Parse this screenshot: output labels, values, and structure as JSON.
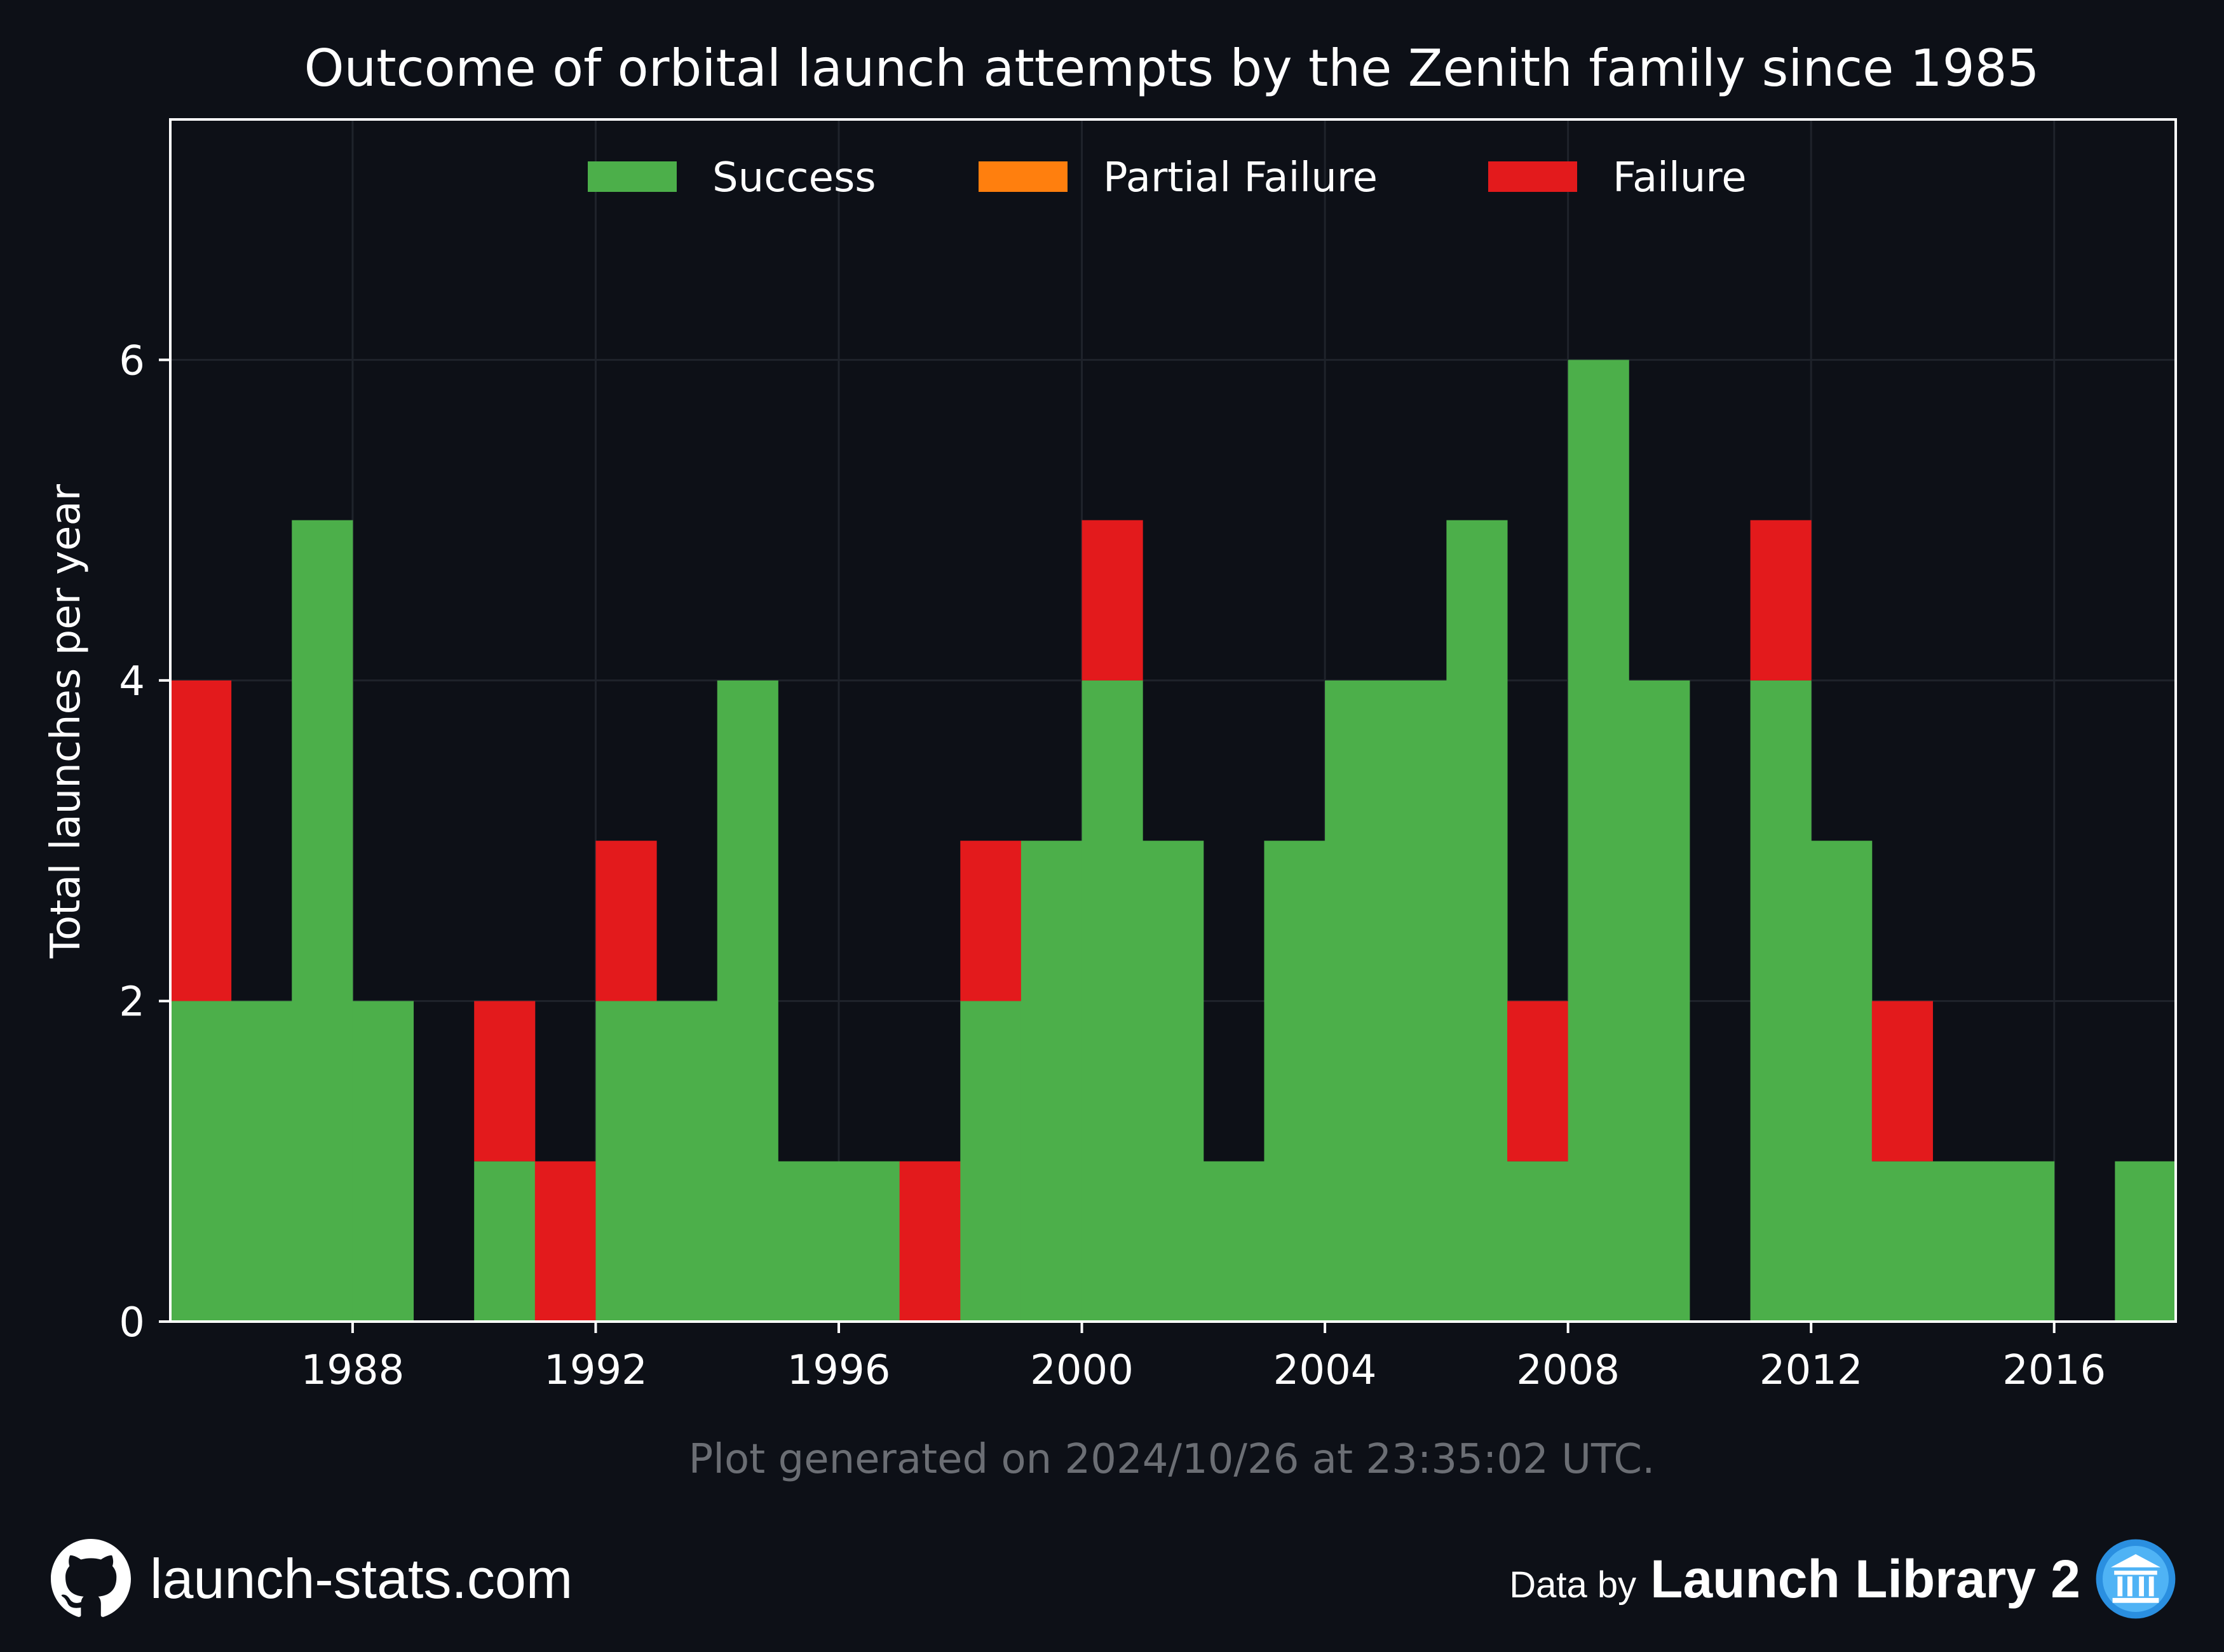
{
  "chart_data": {
    "type": "bar",
    "stacked": true,
    "title": "Outcome of orbital launch attempts by the Zenith family since 1985",
    "xlabel": "",
    "ylabel": "Total launches per year",
    "x": [
      1985,
      1986,
      1987,
      1988,
      1989,
      1990,
      1991,
      1992,
      1993,
      1994,
      1995,
      1996,
      1997,
      1998,
      1999,
      2000,
      2001,
      2002,
      2003,
      2004,
      2005,
      2006,
      2007,
      2008,
      2009,
      2010,
      2011,
      2012,
      2013,
      2014,
      2015,
      2016,
      2017
    ],
    "series": [
      {
        "name": "Success",
        "color": "#4caf4a",
        "values": [
          2,
          2,
          5,
          2,
          0,
          1,
          0,
          2,
          2,
          4,
          1,
          1,
          0,
          2,
          3,
          4,
          3,
          1,
          3,
          4,
          4,
          5,
          1,
          6,
          4,
          0,
          4,
          3,
          1,
          1,
          1,
          0,
          1
        ]
      },
      {
        "name": "Partial Failure",
        "color": "#ff7f0e",
        "values": [
          0,
          0,
          0,
          0,
          0,
          0,
          0,
          0,
          0,
          0,
          0,
          0,
          0,
          0,
          0,
          0,
          0,
          0,
          0,
          0,
          0,
          0,
          0,
          0,
          0,
          0,
          0,
          0,
          0,
          0,
          0,
          0,
          0
        ]
      },
      {
        "name": "Failure",
        "color": "#e31a1c",
        "values": [
          2,
          0,
          0,
          0,
          0,
          1,
          1,
          1,
          0,
          0,
          0,
          0,
          1,
          1,
          0,
          1,
          0,
          0,
          0,
          0,
          0,
          0,
          1,
          0,
          0,
          0,
          1,
          0,
          1,
          0,
          0,
          0,
          0
        ]
      }
    ],
    "xlim": [
      1985,
      2018
    ],
    "ylim": [
      0,
      7.5
    ],
    "xticks": [
      1988,
      1992,
      1996,
      2000,
      2004,
      2008,
      2012,
      2016
    ],
    "yticks": [
      0,
      2,
      4,
      6
    ],
    "grid": true,
    "legend": "top-center"
  },
  "footnote": "Plot generated on 2024/10/26 at 23:35:02 UTC.",
  "footer": {
    "site": "launch-stats.com",
    "data_by": "Data by",
    "source": "Launch Library 2",
    "github_icon": "github-icon",
    "source_icon": "launch-library-icon"
  },
  "colors": {
    "background": "#0d1017",
    "text": "#ffffff",
    "muted": "#6b6e74",
    "grid": "#1f232b"
  }
}
